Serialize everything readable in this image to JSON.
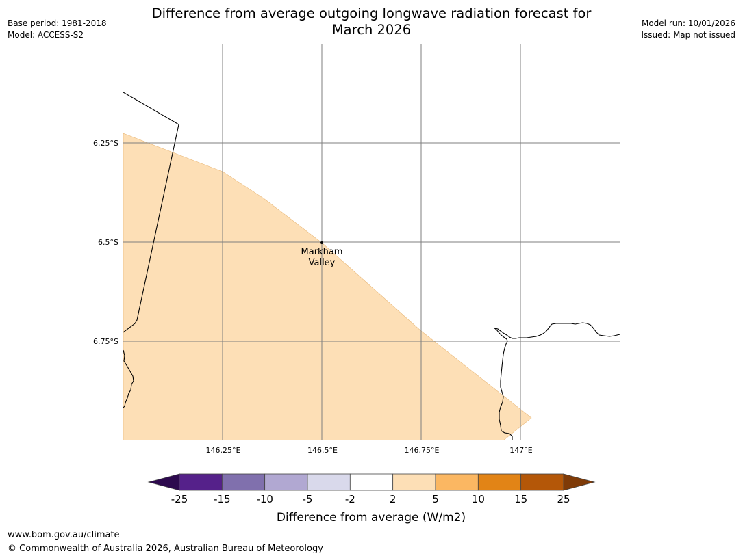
{
  "title": {
    "line1": "Difference from average outgoing longwave radiation forecast for",
    "line2": "March 2026"
  },
  "meta_left": {
    "base_period": "Base period: 1981-2018",
    "model": "Model: ACCESS-S2"
  },
  "meta_right": {
    "model_run": "Model run: 10/01/2026",
    "issued": "Issued: Map not issued"
  },
  "map": {
    "lat_labels": [
      "6.25°S",
      "6.5°S",
      "6.75°S"
    ],
    "lon_labels": [
      "146.25°E",
      "146.5°E",
      "146.75°E",
      "147°E"
    ],
    "place": {
      "name_line1": "Markham",
      "name_line2": "Valley"
    },
    "shaded_category": "2 to 5",
    "shaded_color": "#fddfb6",
    "gridline_color": "#7f7f7f"
  },
  "colorbar": {
    "label": "Difference from average (W/m2)",
    "ticks": [
      "-25",
      "-15",
      "-10",
      "-5",
      "-2",
      "2",
      "5",
      "10",
      "15",
      "25"
    ],
    "colors": [
      "#55218a",
      "#8070ad",
      "#b1a8d2",
      "#d9d9eb",
      "#ffffff",
      "#fddfb6",
      "#fbb762",
      "#e28416",
      "#b45708"
    ],
    "extend_low_color": "#2d0a4e",
    "extend_high_color": "#7f3b08"
  },
  "footer": {
    "url": "www.bom.gov.au/climate",
    "copyright": "© Commonwealth of Australia 2026, Australian Bureau of Meteorology"
  }
}
